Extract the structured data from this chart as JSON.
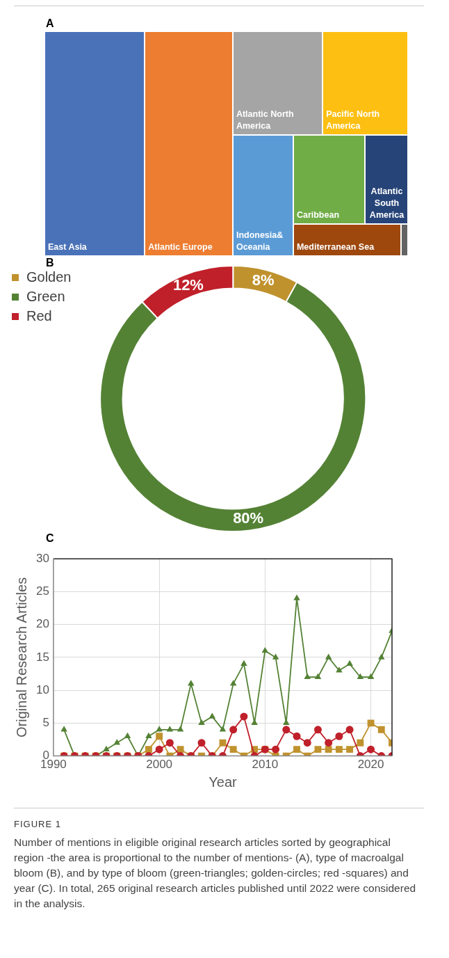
{
  "chart_data": [
    {
      "type": "other",
      "title": "A",
      "categories": [
        "East Asia",
        "Atlantic Europe",
        "Atlantic North America",
        "Pacific North America",
        "Indonesia& Oceania",
        "Caribbean",
        "Atlantic South America",
        "Mediterranean Sea",
        null
      ],
      "colors": [
        "#4a72b8",
        "#ed7d31",
        "#a5a5a5",
        "#fdbf12",
        "#5b9bd5",
        "#70ad47",
        "#264478",
        "#9e480e",
        "#636363"
      ]
    },
    {
      "type": "donut",
      "title": "B",
      "categories": [
        "Golden",
        "Green",
        "Red"
      ],
      "values": [
        8,
        80,
        12
      ],
      "colors": [
        "#c0922e",
        "#548235",
        "#c0202a"
      ],
      "value_labels": [
        "8%",
        "80%",
        "12%"
      ],
      "legend": "left"
    },
    {
      "type": "line",
      "title": "C",
      "xlabel": "Year",
      "ylabel": "Original Research Articles",
      "x": [
        1991,
        1992,
        1993,
        1994,
        1995,
        1996,
        1997,
        1998,
        1999,
        2000,
        2001,
        2002,
        2003,
        2004,
        2005,
        2006,
        2007,
        2008,
        2009,
        2010,
        2011,
        2012,
        2013,
        2014,
        2015,
        2016,
        2017,
        2018,
        2019,
        2020,
        2021,
        2022
      ],
      "series": [
        {
          "color": "#548235",
          "marker": "triangle",
          "values": [
            4,
            0,
            0,
            0,
            1,
            2,
            3,
            0,
            3,
            4,
            4,
            4,
            11,
            5,
            6,
            4,
            11,
            14,
            5,
            16,
            15,
            5,
            24,
            12,
            12,
            15,
            13,
            14,
            12,
            12,
            15,
            19
          ]
        },
        {
          "color": "#c0922e",
          "marker": "square",
          "values": [
            0,
            0,
            0,
            0,
            0,
            0,
            0,
            0,
            1,
            3,
            0,
            1,
            0,
            0,
            0,
            2,
            1,
            0,
            1,
            1,
            0,
            0,
            1,
            0,
            1,
            1,
            1,
            1,
            2,
            5,
            4,
            2
          ]
        },
        {
          "color": "#c0202a",
          "marker": "circle",
          "values": [
            0,
            0,
            0,
            0,
            0,
            0,
            0,
            0,
            0,
            1,
            2,
            0,
            0,
            2,
            0,
            0,
            4,
            6,
            0,
            1,
            1,
            4,
            3,
            2,
            4,
            2,
            3,
            4,
            0,
            1,
            0,
            0
          ]
        }
      ],
      "xlim": [
        1990,
        2022
      ],
      "xticks": [
        1990,
        2000,
        2010,
        2020
      ],
      "ylim": [
        0,
        30
      ],
      "yticks": [
        0,
        5,
        10,
        15,
        20,
        25,
        30
      ],
      "grid": true,
      "line_style": "solid",
      "annotations": [
        "FIGURE 1",
        "Number of mentions in eligible original research articles sorted by geographical region -the area is proportional to the number of mentions- (A), type of macroalgal bloom (B), and by type of bloom (green-triangles; golden-circles; red -squares) and year (C). In total, 265 original research articles published until 2022 were considered in the analysis."
      ]
    }
  ]
}
